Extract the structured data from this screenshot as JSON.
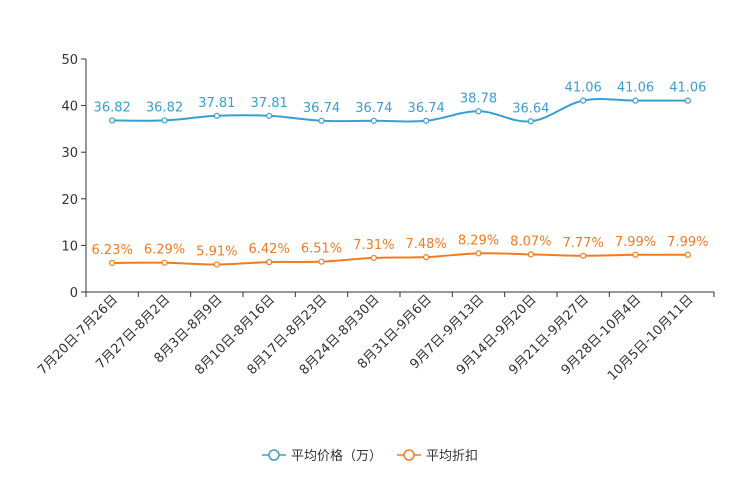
{
  "chart_data": {
    "type": "line",
    "categories": [
      "7月20日-7月26日",
      "7月27日-8月2日",
      "8月3日-8月9日",
      "8月10日-8月16日",
      "8月17日-8月23日",
      "8月24日-8月30日",
      "8月31日-9月6日",
      "9月7日-9月13日",
      "9月14日-9月20日",
      "9月21日-9月27日",
      "9月28日-10月4日",
      "10月5日-10月11日"
    ],
    "ylim": [
      0,
      50
    ],
    "yticks": [
      0,
      10,
      20,
      30,
      40,
      50
    ],
    "series": [
      {
        "name": "平均价格（万）",
        "color": "#3a9fd0",
        "values": [
          36.82,
          36.82,
          37.81,
          37.81,
          36.74,
          36.74,
          36.74,
          38.78,
          36.64,
          41.06,
          41.06,
          41.06
        ],
        "labels": [
          "36.82",
          "36.82",
          "37.81",
          "37.81",
          "36.74",
          "36.74",
          "36.74",
          "38.78",
          "36.64",
          "41.06",
          "41.06",
          "41.06"
        ]
      },
      {
        "name": "平均折扣",
        "color": "#f07c20",
        "values": [
          6.23,
          6.29,
          5.91,
          6.42,
          6.51,
          7.31,
          7.48,
          8.29,
          8.07,
          7.77,
          7.99,
          7.99
        ],
        "labels": [
          "6.23%",
          "6.29%",
          "5.91%",
          "6.42%",
          "6.51%",
          "7.31%",
          "7.48%",
          "8.29%",
          "8.07%",
          "7.77%",
          "7.99%",
          "7.99%"
        ]
      }
    ],
    "legend_position": "bottom-center"
  }
}
